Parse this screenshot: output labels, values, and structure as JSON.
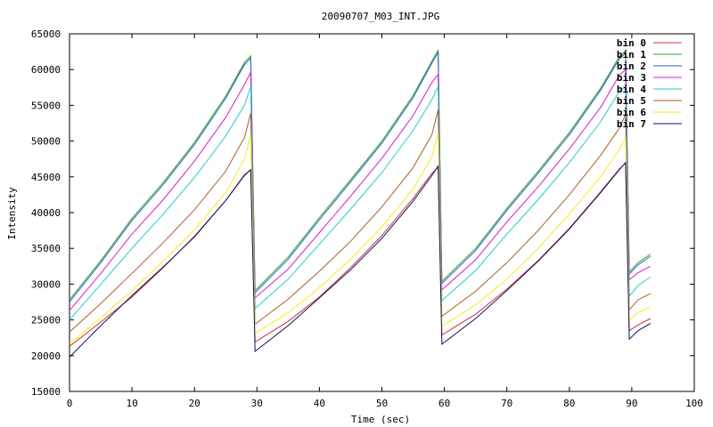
{
  "chart_data": {
    "type": "line",
    "title": "20090707_M03_INT.JPG",
    "xlabel": "Time (sec)",
    "ylabel": "Intensity",
    "xlim": [
      0,
      100
    ],
    "ylim": [
      15000,
      65000
    ],
    "xticks": [
      0,
      10,
      20,
      30,
      40,
      50,
      60,
      70,
      80,
      90,
      100
    ],
    "yticks": [
      15000,
      20000,
      25000,
      30000,
      35000,
      40000,
      45000,
      50000,
      55000,
      60000,
      65000
    ],
    "xtick_labels": [
      "0",
      "10",
      "20",
      "30",
      "40",
      "50",
      "60",
      "70",
      "80",
      "90",
      "100"
    ],
    "ytick_labels": [
      "15000",
      "20000",
      "25000",
      "30000",
      "35000",
      "40000",
      "45000",
      "50000",
      "55000",
      "60000",
      "65000"
    ],
    "grid": false,
    "legend_position": "top-right",
    "series": [
      {
        "name": "bin 0",
        "color": "#cc3333",
        "points": [
          [
            0,
            21300
          ],
          [
            5,
            24700
          ],
          [
            10,
            28200
          ],
          [
            15,
            32300
          ],
          [
            20,
            36700
          ],
          [
            25,
            41700
          ],
          [
            28,
            45300
          ],
          [
            29,
            46000
          ],
          [
            29.7,
            21900
          ],
          [
            35,
            24800
          ],
          [
            40,
            28200
          ],
          [
            45,
            32300
          ],
          [
            50,
            36800
          ],
          [
            55,
            42000
          ],
          [
            58,
            45500
          ],
          [
            59,
            46300
          ],
          [
            59.6,
            22900
          ],
          [
            65,
            25800
          ],
          [
            70,
            29300
          ],
          [
            75,
            33300
          ],
          [
            80,
            37800
          ],
          [
            85,
            42900
          ],
          [
            88,
            46100
          ],
          [
            89,
            46900
          ],
          [
            89.6,
            23500
          ],
          [
            91,
            24300
          ],
          [
            93,
            25200
          ]
        ]
      },
      {
        "name": "bin 1",
        "color": "#22aa22",
        "points": [
          [
            0,
            27800
          ],
          [
            5,
            33300
          ],
          [
            10,
            39200
          ],
          [
            15,
            44200
          ],
          [
            20,
            49800
          ],
          [
            25,
            56300
          ],
          [
            28,
            61000
          ],
          [
            29,
            61900
          ],
          [
            29.7,
            29100
          ],
          [
            35,
            33800
          ],
          [
            40,
            39300
          ],
          [
            45,
            44600
          ],
          [
            50,
            50000
          ],
          [
            55,
            56400
          ],
          [
            58,
            61200
          ],
          [
            59,
            62700
          ],
          [
            59.6,
            30400
          ],
          [
            65,
            35000
          ],
          [
            70,
            40600
          ],
          [
            75,
            45800
          ],
          [
            80,
            51200
          ],
          [
            85,
            57400
          ],
          [
            88,
            61800
          ],
          [
            89,
            62600
          ],
          [
            89.6,
            31700
          ],
          [
            91,
            33000
          ],
          [
            93,
            34200
          ]
        ]
      },
      {
        "name": "bin 2",
        "color": "#3355cc",
        "points": [
          [
            0,
            27500
          ],
          [
            5,
            33000
          ],
          [
            10,
            38900
          ],
          [
            15,
            43900
          ],
          [
            20,
            49500
          ],
          [
            25,
            56000
          ],
          [
            28,
            60700
          ],
          [
            29,
            61600
          ],
          [
            29.7,
            28800
          ],
          [
            35,
            33500
          ],
          [
            40,
            39000
          ],
          [
            45,
            44300
          ],
          [
            50,
            49700
          ],
          [
            55,
            56100
          ],
          [
            58,
            60900
          ],
          [
            59,
            62400
          ],
          [
            59.6,
            30100
          ],
          [
            65,
            34700
          ],
          [
            70,
            40300
          ],
          [
            75,
            45500
          ],
          [
            80,
            50900
          ],
          [
            85,
            57100
          ],
          [
            88,
            61500
          ],
          [
            89,
            62300
          ],
          [
            89.6,
            31400
          ],
          [
            91,
            32700
          ],
          [
            93,
            33900
          ]
        ]
      },
      {
        "name": "bin 3",
        "color": "#cc22cc",
        "points": [
          [
            0,
            26300
          ],
          [
            5,
            31500
          ],
          [
            10,
            37000
          ],
          [
            15,
            41800
          ],
          [
            20,
            47200
          ],
          [
            25,
            53300
          ],
          [
            28,
            57900
          ],
          [
            29,
            59600
          ],
          [
            29.7,
            28100
          ],
          [
            35,
            32100
          ],
          [
            40,
            37200
          ],
          [
            45,
            42300
          ],
          [
            50,
            47600
          ],
          [
            55,
            53600
          ],
          [
            58,
            58200
          ],
          [
            59,
            59300
          ],
          [
            59.6,
            29200
          ],
          [
            65,
            33400
          ],
          [
            70,
            38700
          ],
          [
            75,
            43600
          ],
          [
            80,
            48900
          ],
          [
            85,
            54700
          ],
          [
            88,
            59200
          ],
          [
            89,
            60000
          ],
          [
            89.6,
            30600
          ],
          [
            91,
            31600
          ],
          [
            93,
            32500
          ]
        ]
      },
      {
        "name": "bin 4",
        "color": "#22cccc",
        "points": [
          [
            0,
            25000
          ],
          [
            5,
            30000
          ],
          [
            10,
            35000
          ],
          [
            15,
            39800
          ],
          [
            20,
            44900
          ],
          [
            25,
            50700
          ],
          [
            28,
            55000
          ],
          [
            29,
            57600
          ],
          [
            29.7,
            26600
          ],
          [
            35,
            30700
          ],
          [
            40,
            35600
          ],
          [
            45,
            40500
          ],
          [
            50,
            45600
          ],
          [
            55,
            51500
          ],
          [
            58,
            55800
          ],
          [
            59,
            57600
          ],
          [
            59.6,
            27700
          ],
          [
            65,
            31900
          ],
          [
            70,
            37000
          ],
          [
            75,
            41800
          ],
          [
            80,
            47000
          ],
          [
            85,
            52700
          ],
          [
            88,
            56900
          ],
          [
            89,
            57700
          ],
          [
            89.6,
            28300
          ],
          [
            91,
            29800
          ],
          [
            93,
            31000
          ]
        ]
      },
      {
        "name": "bin 5",
        "color": "#b05a2a",
        "points": [
          [
            0,
            23300
          ],
          [
            5,
            27300
          ],
          [
            10,
            31500
          ],
          [
            15,
            35800
          ],
          [
            20,
            40400
          ],
          [
            25,
            45800
          ],
          [
            28,
            50500
          ],
          [
            29,
            53900
          ],
          [
            29.7,
            24400
          ],
          [
            35,
            27900
          ],
          [
            40,
            31800
          ],
          [
            45,
            36000
          ],
          [
            50,
            40800
          ],
          [
            55,
            46300
          ],
          [
            58,
            50900
          ],
          [
            59,
            54400
          ],
          [
            59.6,
            25500
          ],
          [
            65,
            29000
          ],
          [
            70,
            33000
          ],
          [
            75,
            37500
          ],
          [
            80,
            42500
          ],
          [
            85,
            48000
          ],
          [
            88,
            51800
          ],
          [
            89,
            53700
          ],
          [
            89.6,
            26400
          ],
          [
            91,
            27800
          ],
          [
            93,
            28700
          ]
        ]
      },
      {
        "name": "bin 6",
        "color": "#eeee22",
        "points": [
          [
            0,
            21600
          ],
          [
            5,
            25300
          ],
          [
            10,
            29100
          ],
          [
            15,
            33200
          ],
          [
            20,
            37600
          ],
          [
            25,
            42800
          ],
          [
            28,
            47500
          ],
          [
            29,
            50800
          ],
          [
            29.7,
            23100
          ],
          [
            35,
            26000
          ],
          [
            40,
            29500
          ],
          [
            45,
            33500
          ],
          [
            50,
            38000
          ],
          [
            55,
            43300
          ],
          [
            58,
            47800
          ],
          [
            59,
            51200
          ],
          [
            59.6,
            24100
          ],
          [
            65,
            27100
          ],
          [
            70,
            30700
          ],
          [
            75,
            35000
          ],
          [
            80,
            39800
          ],
          [
            85,
            45000
          ],
          [
            88,
            48800
          ],
          [
            89,
            50600
          ],
          [
            89.6,
            25000
          ],
          [
            91,
            26000
          ],
          [
            93,
            26800
          ]
        ]
      },
      {
        "name": "bin 7",
        "color": "#111166",
        "points": [
          [
            0,
            19800
          ],
          [
            5,
            24200
          ],
          [
            10,
            28400
          ],
          [
            15,
            32400
          ],
          [
            20,
            36600
          ],
          [
            25,
            41700
          ],
          [
            28,
            45200
          ],
          [
            29,
            46000
          ],
          [
            29.7,
            20600
          ],
          [
            35,
            24200
          ],
          [
            40,
            28100
          ],
          [
            45,
            32000
          ],
          [
            50,
            36400
          ],
          [
            55,
            41600
          ],
          [
            58,
            45200
          ],
          [
            59,
            46500
          ],
          [
            59.6,
            21600
          ],
          [
            65,
            25200
          ],
          [
            70,
            29100
          ],
          [
            75,
            33200
          ],
          [
            80,
            37700
          ],
          [
            85,
            42800
          ],
          [
            88,
            46000
          ],
          [
            89,
            47000
          ],
          [
            89.6,
            22300
          ],
          [
            91,
            23500
          ],
          [
            93,
            24500
          ]
        ]
      }
    ]
  }
}
